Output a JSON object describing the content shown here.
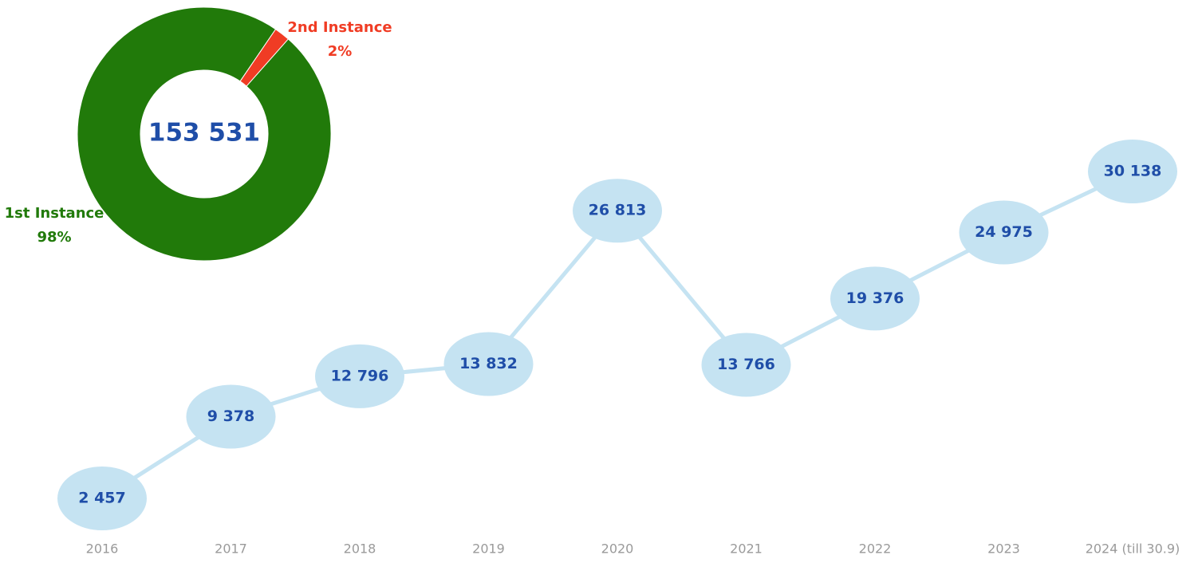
{
  "chart_data": [
    {
      "type": "donut",
      "center_label": "153 531",
      "categories": [
        "1st Instance",
        "2nd Instance"
      ],
      "values": [
        98,
        2
      ],
      "value_labels": [
        "98%",
        "2%"
      ],
      "colors": [
        "#217a0a",
        "#f03c24"
      ]
    },
    {
      "type": "line",
      "categories": [
        "2016",
        "2017",
        "2018",
        "2019",
        "2020",
        "2021",
        "2022",
        "2023",
        "2024 (till 30.9)"
      ],
      "values": [
        2457,
        9378,
        12796,
        13832,
        26813,
        13766,
        19376,
        24975,
        30138
      ],
      "value_labels": [
        "2 457",
        "9 378",
        "12 796",
        "13 832",
        "26 813",
        "13 766",
        "19 376",
        "24 975",
        "30 138"
      ],
      "color": "#c5e3f2",
      "label_color": "#1f4ea8"
    }
  ]
}
